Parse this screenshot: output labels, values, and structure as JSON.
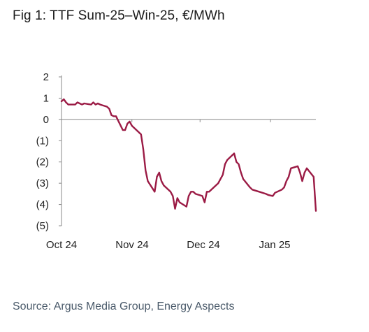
{
  "figure": {
    "title": "Fig 1: TTF Sum-25–Win-25, €/MWh",
    "source": "Source: Argus Media Group, Energy Aspects"
  },
  "chart_data": {
    "type": "line",
    "title": "Fig 1: TTF Sum-25–Win-25, €/MWh",
    "xlabel": "",
    "ylabel": "",
    "ylim": [
      -5,
      2
    ],
    "y_ticks": [
      2,
      1,
      0,
      -1,
      -2,
      -3,
      -4,
      -5
    ],
    "y_tick_labels": [
      "2",
      "1",
      "0",
      "(1)",
      "(2)",
      "(3)",
      "(4)",
      "(5)"
    ],
    "x_tick_labels": [
      "Oct 24",
      "Nov 24",
      "Dec 24",
      "Jan 25"
    ],
    "grid": false,
    "colors": {
      "line": "#9b1b45",
      "axis": "#888888"
    },
    "series": [
      {
        "x": [
          "2024-10-01",
          "2024-10-02",
          "2024-10-03",
          "2024-10-04",
          "2024-10-07",
          "2024-10-08",
          "2024-10-09",
          "2024-10-10",
          "2024-10-11",
          "2024-10-14",
          "2024-10-15",
          "2024-10-16",
          "2024-10-17",
          "2024-10-18",
          "2024-10-21",
          "2024-10-22",
          "2024-10-23",
          "2024-10-24",
          "2024-10-25",
          "2024-10-28",
          "2024-10-29",
          "2024-10-30",
          "2024-10-31",
          "2024-11-01",
          "2024-11-04",
          "2024-11-05",
          "2024-11-06",
          "2024-11-07",
          "2024-11-08",
          "2024-11-11",
          "2024-11-12",
          "2024-11-13",
          "2024-11-14",
          "2024-11-15",
          "2024-11-18",
          "2024-11-19",
          "2024-11-20",
          "2024-11-21",
          "2024-11-22",
          "2024-11-25",
          "2024-11-26",
          "2024-11-27",
          "2024-11-28",
          "2024-11-29",
          "2024-12-02",
          "2024-12-03",
          "2024-12-04",
          "2024-12-05",
          "2024-12-06",
          "2024-12-09",
          "2024-12-10",
          "2024-12-11",
          "2024-12-12",
          "2024-12-13",
          "2024-12-16",
          "2024-12-17",
          "2024-12-18",
          "2024-12-19",
          "2024-12-20",
          "2024-12-23",
          "2024-12-24",
          "2024-12-27",
          "2024-12-30",
          "2024-12-31",
          "2025-01-02",
          "2025-01-03",
          "2025-01-06",
          "2025-01-07",
          "2025-01-08",
          "2025-01-09",
          "2025-01-10",
          "2025-01-13",
          "2025-01-14",
          "2025-01-15",
          "2025-01-16",
          "2025-01-17",
          "2025-01-20",
          "2025-01-21"
        ],
        "values": [
          0.85,
          0.95,
          0.8,
          0.7,
          0.7,
          0.8,
          0.75,
          0.7,
          0.75,
          0.7,
          0.8,
          0.7,
          0.75,
          0.7,
          0.6,
          0.5,
          0.2,
          0.15,
          0.15,
          -0.5,
          -0.5,
          -0.2,
          -0.1,
          -0.3,
          -0.6,
          -0.7,
          -1.4,
          -2.4,
          -2.9,
          -3.4,
          -2.7,
          -2.5,
          -2.9,
          -3.1,
          -3.4,
          -3.6,
          -4.2,
          -3.7,
          -3.9,
          -4.1,
          -3.6,
          -3.4,
          -3.4,
          -3.5,
          -3.6,
          -3.9,
          -3.4,
          -3.4,
          -3.3,
          -3.0,
          -2.8,
          -2.6,
          -2.1,
          -1.9,
          -1.6,
          -2.0,
          -2.1,
          -2.5,
          -2.8,
          -3.2,
          -3.3,
          -3.4,
          -3.5,
          -3.55,
          -3.6,
          -3.45,
          -3.3,
          -3.2,
          -2.9,
          -2.7,
          -2.3,
          -2.2,
          -2.5,
          -2.9,
          -2.5,
          -2.3,
          -2.7,
          -4.3
        ]
      }
    ]
  }
}
